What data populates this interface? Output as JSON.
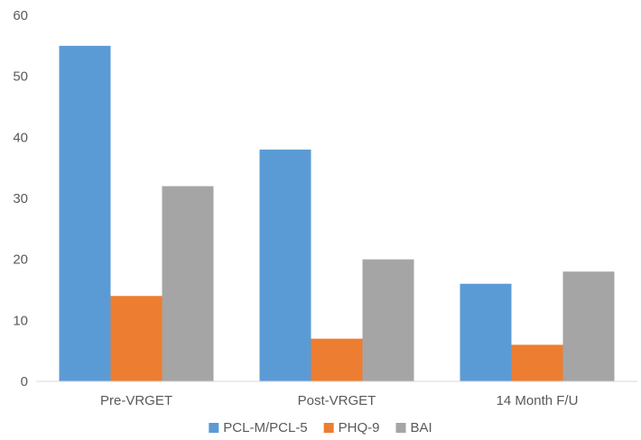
{
  "chart_data": {
    "type": "bar",
    "categories": [
      "Pre-VRGET",
      "Post-VRGET",
      "14 Month F/U"
    ],
    "series": [
      {
        "name": "PCL-M/PCL-5",
        "color": "#5B9BD5",
        "values": [
          55,
          38,
          16
        ]
      },
      {
        "name": "PHQ-9",
        "color": "#ED7D31",
        "values": [
          14,
          7,
          6
        ]
      },
      {
        "name": "BAI",
        "color": "#A5A5A5",
        "values": [
          32,
          20,
          18
        ]
      }
    ],
    "ylim": [
      0,
      60
    ],
    "yticks": [
      0,
      10,
      20,
      30,
      40,
      50,
      60
    ],
    "ytick_labels": [
      "0",
      "10",
      "20",
      "30",
      "40",
      "50",
      "60"
    ],
    "grid": false,
    "legend_position": "bottom",
    "title": "",
    "xlabel": "",
    "ylabel": ""
  }
}
